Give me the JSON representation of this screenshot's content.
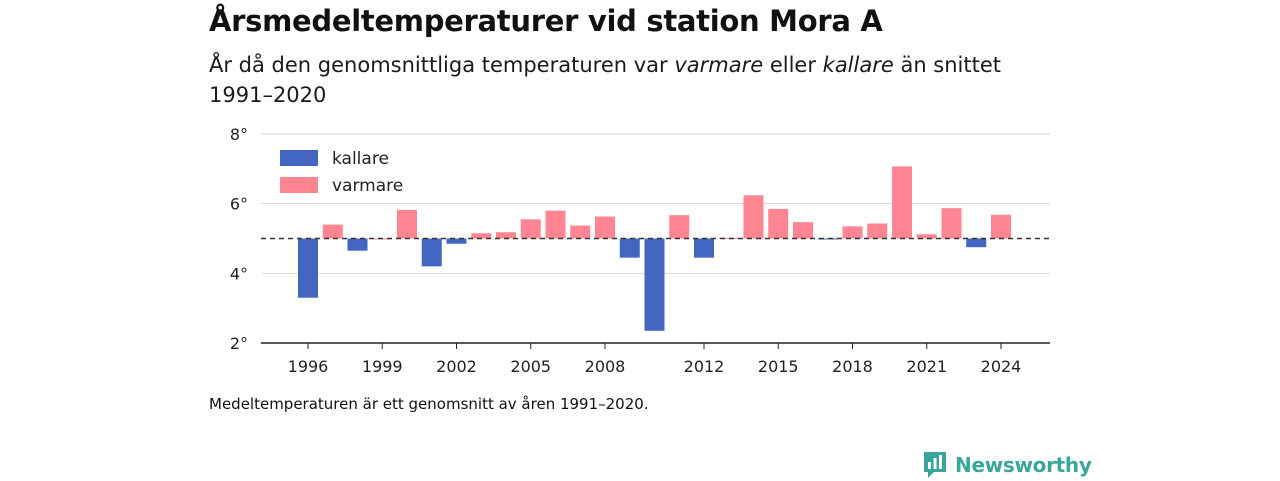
{
  "header": {
    "title": "Årsmedeltemperaturer vid station Mora A",
    "subtitle_part1": "År då den genomsnittliga temperaturen var ",
    "subtitle_em1": "varmare",
    "subtitle_part2": " eller ",
    "subtitle_em2": "kallare",
    "subtitle_part3": " än snittet 1991–2020"
  },
  "footnote": "Medeltemperaturen är ett genomsnitt av åren 1991–2020.",
  "brand": {
    "name": "Newsworthy",
    "color": "#3aa69b"
  },
  "chart_data": {
    "type": "bar",
    "baseline": 5.0,
    "ylim": [
      2,
      8
    ],
    "yticks": [
      2,
      4,
      6,
      8
    ],
    "ytick_labels": [
      "2°",
      "4°",
      "6°",
      "8°"
    ],
    "xticks": [
      1996,
      1999,
      2002,
      2005,
      2008,
      2012,
      2015,
      2018,
      2021,
      2024
    ],
    "grid": true,
    "legend_position": "top-left",
    "colors": {
      "kallare": "#4266c1",
      "varmare": "#ff8593"
    },
    "legend": [
      {
        "key": "kallare",
        "label": "kallare"
      },
      {
        "key": "varmare",
        "label": "varmare"
      }
    ],
    "x": [
      1996,
      1997,
      1998,
      1999,
      2000,
      2001,
      2002,
      2003,
      2004,
      2005,
      2006,
      2007,
      2008,
      2009,
      2010,
      2011,
      2012,
      2013,
      2014,
      2015,
      2016,
      2017,
      2018,
      2019,
      2020,
      2021,
      2022,
      2023,
      2024
    ],
    "values": [
      3.3,
      5.4,
      4.65,
      5.0,
      5.82,
      4.2,
      4.85,
      5.15,
      5.18,
      5.55,
      5.8,
      5.37,
      5.63,
      4.45,
      2.35,
      5.67,
      4.45,
      5.02,
      6.24,
      5.85,
      5.47,
      4.98,
      5.35,
      5.43,
      7.07,
      5.12,
      5.87,
      4.75,
      5.68
    ]
  }
}
